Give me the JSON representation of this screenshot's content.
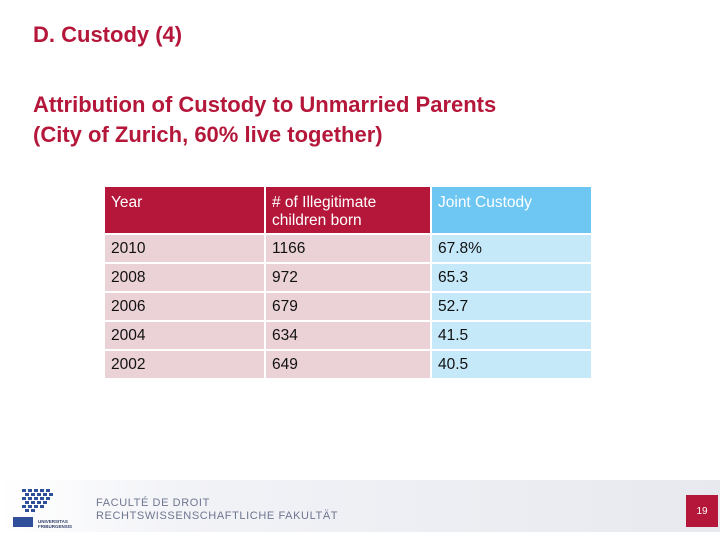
{
  "slide": {
    "section_title": "D. Custody (4)",
    "subtitle_line1": "Attribution of Custody to Unmarried Parents",
    "subtitle_line2": "(City of Zurich, 60% live together)"
  },
  "table": {
    "headers": [
      "Year",
      " # of Illegitimate children born",
      "Joint Custody"
    ],
    "rows": [
      [
        "2010",
        "1166",
        "67.8%"
      ],
      [
        "2008",
        "972",
        "65.3"
      ],
      [
        "2006",
        "679",
        "52.7"
      ],
      [
        "2004",
        "634",
        "41.5"
      ],
      [
        "2002",
        "649",
        "40.5"
      ]
    ]
  },
  "footer": {
    "faculty_fr": "FACULTÉ DE DROIT",
    "faculty_de": "RECHTSWISSENSCHAFTLICHE FAKULTÄT",
    "logo_text_line1": "UNIVERSITAS",
    "logo_text_line2": "FRIBURGENSIS",
    "page_number": "19"
  },
  "colors": {
    "brand_red": "#b5173a",
    "header_blue": "#6ec6f3",
    "row_pink": "#ead2d6",
    "row_blue": "#c6e9fa"
  }
}
